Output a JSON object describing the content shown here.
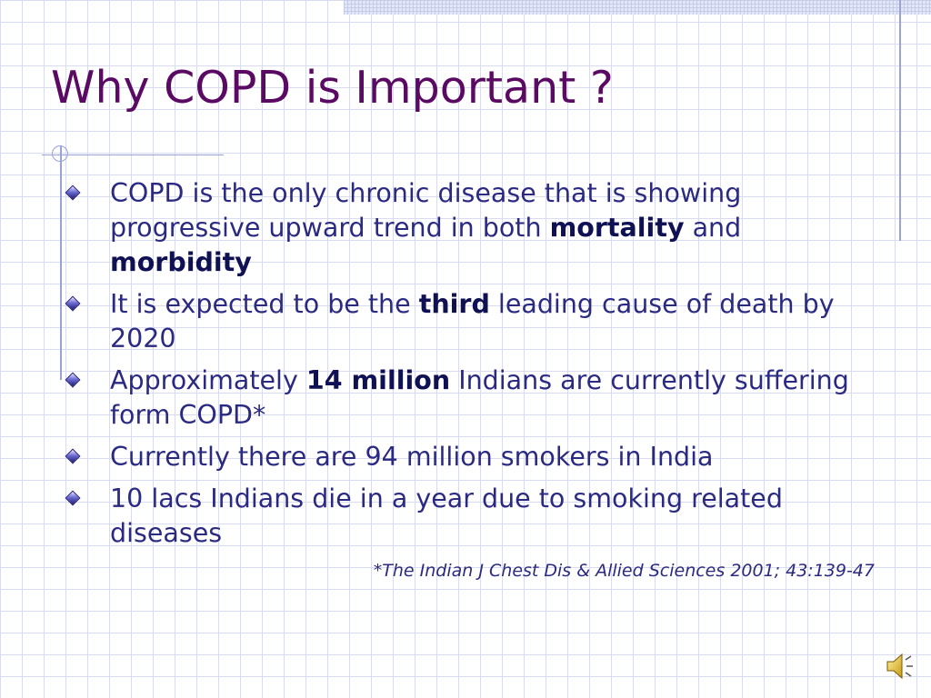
{
  "slide": {
    "title": "Why COPD is Important ?",
    "bullets": [
      {
        "segments": [
          {
            "text": "COPD is the only chronic disease that is showing progressive upward trend in both ",
            "bold": false
          },
          {
            "text": "mortality",
            "bold": true
          },
          {
            "text": " and ",
            "bold": false
          },
          {
            "text": "morbidity",
            "bold": true
          }
        ]
      },
      {
        "segments": [
          {
            "text": "It is expected to be the ",
            "bold": false
          },
          {
            "text": "third",
            "bold": true
          },
          {
            "text": " leading cause of death by 2020",
            "bold": false
          }
        ]
      },
      {
        "segments": [
          {
            "text": "Approximately ",
            "bold": false
          },
          {
            "text": "14 million",
            "bold": true
          },
          {
            "text": " Indians are currently suffering form COPD*",
            "bold": false
          }
        ]
      },
      {
        "segments": [
          {
            "text": "Currently there are 94 million smokers in India",
            "bold": false
          }
        ]
      },
      {
        "segments": [
          {
            "text": "10 lacs Indians die in a year due to smoking related diseases",
            "bold": false
          }
        ]
      }
    ],
    "citation": "*The Indian J Chest Dis & Allied Sciences 2001; 43:139-47"
  },
  "icons": {
    "bullet": "diamond-icon",
    "audio": "speaker-icon"
  },
  "colors": {
    "title": "#5b0a63",
    "body_text": "#2b2a82",
    "bold_text": "#101055",
    "grid": "#d9dcef",
    "accent_lines": "#9aa3d6"
  }
}
